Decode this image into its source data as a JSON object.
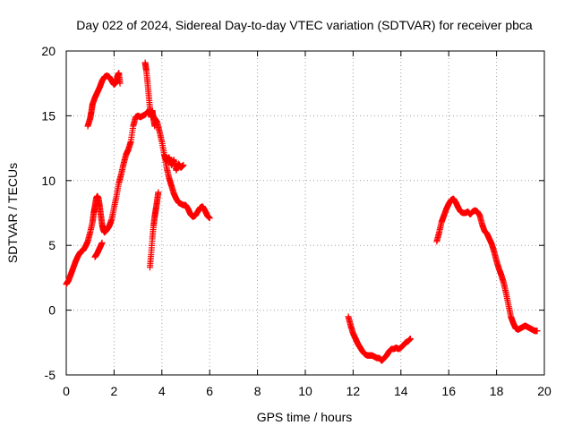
{
  "chart_data": {
    "type": "scatter",
    "title": "Day 022 of 2024, Sidereal Day-to-day VTEC variation (SDTVAR) for receiver pbca",
    "xlabel": "GPS time / hours",
    "ylabel": "SDTVAR / TECUs",
    "xlim": [
      0,
      20
    ],
    "ylim": [
      -5,
      20
    ],
    "xticks": [
      0,
      2,
      4,
      6,
      8,
      10,
      12,
      14,
      16,
      18,
      20
    ],
    "yticks": [
      -5,
      0,
      5,
      10,
      15,
      20
    ],
    "grid": true,
    "marker": "+",
    "marker_color": "#ff0000",
    "series": [
      {
        "name": "pbca",
        "segments": [
          {
            "x": [
              0.0,
              0.1,
              0.2,
              0.3,
              0.4,
              0.5,
              0.6,
              0.7,
              0.8,
              0.9,
              1.0,
              1.1,
              1.15,
              1.2,
              1.25,
              1.3,
              1.35,
              1.4,
              1.45,
              1.5,
              1.55,
              1.6,
              1.7,
              1.8,
              1.9,
              2.0,
              2.1,
              2.2,
              2.3,
              2.4,
              2.5,
              2.6,
              2.7,
              2.8,
              2.9,
              3.0,
              3.1,
              3.2,
              3.3,
              3.4,
              3.5,
              3.6,
              3.7,
              3.8,
              3.9,
              4.0,
              4.1,
              4.2,
              4.3,
              4.4,
              4.5,
              4.6,
              4.7,
              4.8,
              4.9,
              5.0,
              5.1,
              5.2,
              5.3,
              5.4,
              5.5,
              5.6,
              5.7,
              5.8,
              5.9,
              6.0
            ],
            "y": [
              2.0,
              2.3,
              2.8,
              3.3,
              3.8,
              4.2,
              4.5,
              4.6,
              4.9,
              5.3,
              6.0,
              6.8,
              7.5,
              8.0,
              8.6,
              8.8,
              8.6,
              8.0,
              7.3,
              6.6,
              6.2,
              6.0,
              6.2,
              6.5,
              7.0,
              7.9,
              8.8,
              9.8,
              10.5,
              11.3,
              12.0,
              12.4,
              13.0,
              14.2,
              14.9,
              15.0,
              14.9,
              15.0,
              15.1,
              15.3,
              15.2,
              15.0,
              14.8,
              14.5,
              13.8,
              13.0,
              12.0,
              11.0,
              10.2,
              9.6,
              9.0,
              8.6,
              8.3,
              8.2,
              8.1,
              8.1,
              7.8,
              7.4,
              7.2,
              7.3,
              7.6,
              7.9,
              8.0,
              7.7,
              7.3,
              7.1
            ]
          },
          {
            "x": [
              0.9,
              1.0,
              1.05,
              1.1,
              1.2,
              1.3,
              1.4,
              1.5,
              1.6,
              1.7,
              1.8,
              1.9,
              2.0,
              2.1,
              2.15,
              2.2,
              2.25
            ],
            "y": [
              14.2,
              14.8,
              15.3,
              15.9,
              16.4,
              16.8,
              17.2,
              17.7,
              18.0,
              18.1,
              18.0,
              17.7,
              17.4,
              17.6,
              18.1,
              18.3,
              17.5
            ]
          },
          {
            "x": [
              1.2,
              1.3,
              1.4,
              1.5
            ],
            "y": [
              4.1,
              4.4,
              4.8,
              5.2
            ]
          },
          {
            "x": [
              3.3,
              3.35,
              3.4,
              3.45,
              3.5,
              3.55,
              3.6,
              3.65,
              3.7
            ],
            "y": [
              19.1,
              18.5,
              17.6,
              16.6,
              15.6,
              14.9,
              15.4,
              14.8,
              14.2
            ]
          },
          {
            "x": [
              3.5,
              3.55,
              3.6,
              3.65,
              3.7,
              3.75,
              3.8,
              3.85
            ],
            "y": [
              3.3,
              4.3,
              5.5,
              6.5,
              7.2,
              7.8,
              8.4,
              9.1
            ]
          },
          {
            "x": [
              4.1,
              4.2,
              4.3,
              4.4,
              4.5,
              4.6,
              4.7,
              4.8,
              4.9
            ],
            "y": [
              12.0,
              11.5,
              11.8,
              11.2,
              11.6,
              10.8,
              11.3,
              11.0,
              11.2
            ]
          },
          {
            "x": [
              11.8,
              11.9,
              12.0,
              12.1,
              12.2,
              12.3,
              12.4,
              12.5,
              12.6,
              12.7,
              12.8,
              12.9,
              13.0,
              13.1,
              13.2,
              13.3,
              13.4,
              13.5,
              13.6,
              13.7,
              13.8,
              13.9,
              14.0,
              14.1,
              14.2,
              14.3,
              14.4
            ],
            "y": [
              -0.5,
              -1.2,
              -1.8,
              -2.2,
              -2.6,
              -2.9,
              -3.2,
              -3.4,
              -3.5,
              -3.5,
              -3.5,
              -3.6,
              -3.7,
              -3.7,
              -3.9,
              -3.7,
              -3.5,
              -3.2,
              -3.0,
              -3.0,
              -2.9,
              -3.0,
              -2.9,
              -2.7,
              -2.5,
              -2.4,
              -2.2
            ]
          },
          {
            "x": [
              15.5,
              15.6,
              15.7,
              15.8,
              15.9,
              16.0,
              16.1,
              16.2,
              16.3,
              16.4,
              16.5,
              16.6,
              16.7,
              16.8,
              16.9,
              17.0,
              17.1,
              17.2,
              17.3,
              17.4,
              17.5,
              17.6,
              17.7,
              17.8,
              17.9,
              18.0,
              18.1,
              18.2,
              18.3,
              18.4,
              18.5,
              18.6,
              18.7,
              18.8,
              18.9,
              19.0,
              19.1,
              19.2,
              19.3,
              19.4,
              19.5,
              19.6,
              19.7
            ],
            "y": [
              5.3,
              6.0,
              6.8,
              7.3,
              7.8,
              8.2,
              8.5,
              8.6,
              8.3,
              7.9,
              7.6,
              7.5,
              7.5,
              7.6,
              7.4,
              7.6,
              7.7,
              7.6,
              7.3,
              6.6,
              6.1,
              5.9,
              5.5,
              5.1,
              4.5,
              3.8,
              3.2,
              2.7,
              2.1,
              1.3,
              0.4,
              -0.5,
              -1.0,
              -1.4,
              -1.5,
              -1.4,
              -1.3,
              -1.2,
              -1.3,
              -1.4,
              -1.5,
              -1.6,
              -1.6
            ]
          }
        ]
      }
    ]
  }
}
